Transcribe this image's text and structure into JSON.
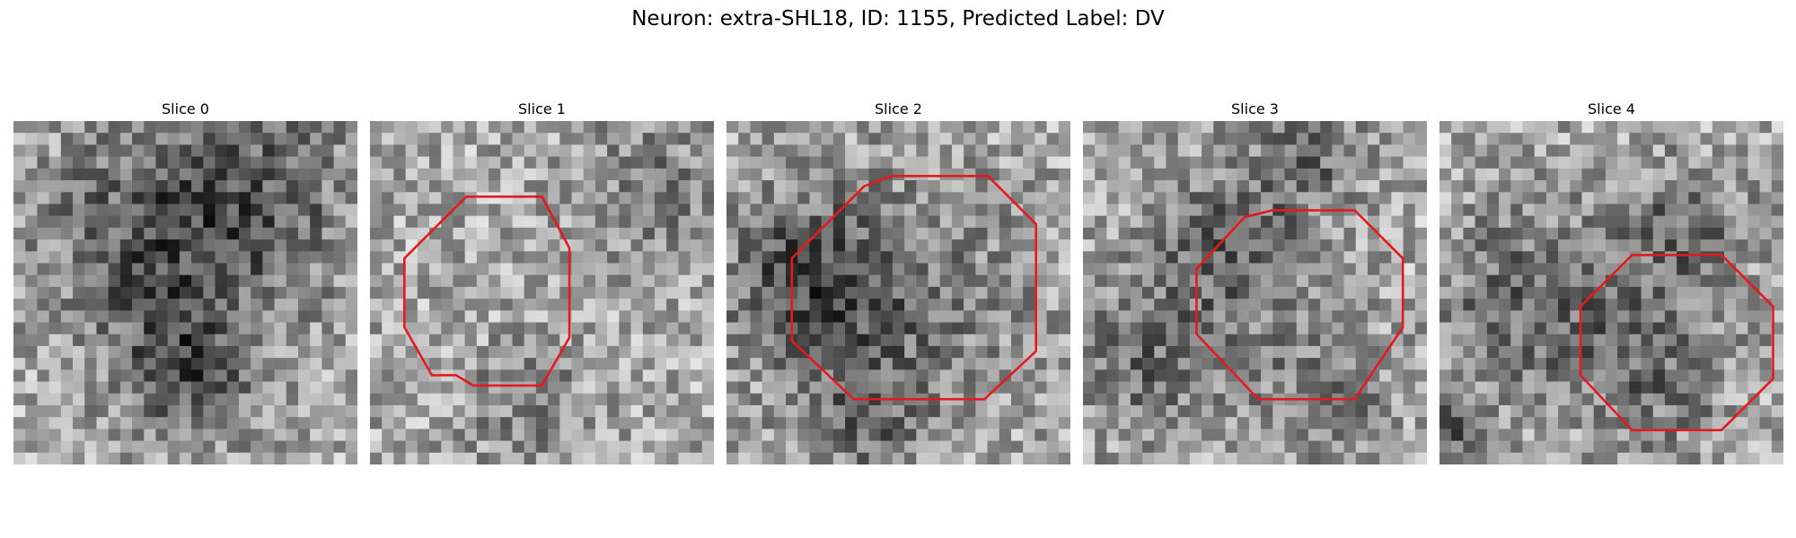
{
  "figure": {
    "title": "Neuron: extra-SHL18, ID: 1155, Predicted Label: DV"
  },
  "colors": {
    "outline": "#e41a1c",
    "background": "#ffffff"
  },
  "panels": [
    {
      "title": "Slice 0",
      "seed": 11,
      "dark_blobs": [
        [
          0.38,
          0.35,
          0.22,
          70
        ],
        [
          0.7,
          0.22,
          0.22,
          70
        ],
        [
          0.5,
          0.72,
          0.14,
          85
        ]
      ],
      "outline": null
    },
    {
      "title": "Slice 1",
      "seed": 23,
      "dark_blobs": [
        [
          0.82,
          0.18,
          0.15,
          45
        ],
        [
          0.45,
          0.82,
          0.12,
          40
        ]
      ],
      "outline": [
        [
          0.28,
          0.22
        ],
        [
          0.5,
          0.22
        ],
        [
          0.58,
          0.37
        ],
        [
          0.58,
          0.63
        ],
        [
          0.5,
          0.77
        ],
        [
          0.3,
          0.77
        ],
        [
          0.25,
          0.74
        ],
        [
          0.18,
          0.74
        ],
        [
          0.1,
          0.6
        ],
        [
          0.1,
          0.4
        ]
      ]
    },
    {
      "title": "Slice 2",
      "seed": 37,
      "dark_blobs": [
        [
          0.22,
          0.45,
          0.16,
          75
        ],
        [
          0.5,
          0.52,
          0.26,
          55
        ],
        [
          0.4,
          0.86,
          0.12,
          55
        ]
      ],
      "outline": [
        [
          0.4,
          0.19
        ],
        [
          0.48,
          0.16
        ],
        [
          0.76,
          0.16
        ],
        [
          0.9,
          0.3
        ],
        [
          0.9,
          0.67
        ],
        [
          0.75,
          0.81
        ],
        [
          0.37,
          0.81
        ],
        [
          0.19,
          0.64
        ],
        [
          0.19,
          0.4
        ]
      ]
    },
    {
      "title": "Slice 3",
      "seed": 53,
      "dark_blobs": [
        [
          0.42,
          0.38,
          0.16,
          70
        ],
        [
          0.65,
          0.1,
          0.12,
          60
        ],
        [
          0.18,
          0.7,
          0.16,
          60
        ],
        [
          0.7,
          0.78,
          0.14,
          50
        ]
      ],
      "outline": [
        [
          0.47,
          0.28
        ],
        [
          0.55,
          0.26
        ],
        [
          0.79,
          0.26
        ],
        [
          0.93,
          0.4
        ],
        [
          0.93,
          0.6
        ],
        [
          0.79,
          0.81
        ],
        [
          0.51,
          0.81
        ],
        [
          0.33,
          0.62
        ],
        [
          0.33,
          0.43
        ]
      ]
    },
    {
      "title": "Slice 4",
      "seed": 71,
      "dark_blobs": [
        [
          0.25,
          0.52,
          0.18,
          70
        ],
        [
          0.7,
          0.32,
          0.14,
          60
        ],
        [
          0.62,
          0.72,
          0.16,
          60
        ],
        [
          0.02,
          0.9,
          0.08,
          70
        ]
      ],
      "outline": [
        [
          0.56,
          0.39
        ],
        [
          0.82,
          0.39
        ],
        [
          0.97,
          0.54
        ],
        [
          0.97,
          0.75
        ],
        [
          0.82,
          0.9
        ],
        [
          0.56,
          0.9
        ],
        [
          0.41,
          0.74
        ],
        [
          0.41,
          0.54
        ]
      ]
    }
  ]
}
